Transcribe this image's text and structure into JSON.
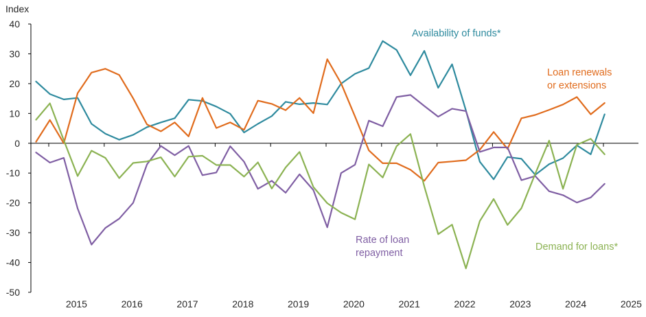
{
  "chart_data": {
    "type": "line",
    "y_axis_title": "Index",
    "ylim": [
      -50,
      40
    ],
    "y_ticks": [
      40,
      30,
      20,
      10,
      0,
      -10,
      -20,
      -30,
      -40,
      -50
    ],
    "x_ticks": [
      "2015",
      "2016",
      "2017",
      "2018",
      "2019",
      "2020",
      "2021",
      "2022",
      "2023",
      "2024",
      "2025"
    ],
    "x_start": "2014Q3",
    "grid": false,
    "legend": "none (series labeled directly on chart)",
    "series": [
      {
        "name": "Availability of funds*",
        "label_lines": [
          "Availability of funds*"
        ],
        "color": "#2e8a9e",
        "values": [
          20.7,
          16.5,
          14.7,
          15.2,
          6.5,
          3.2,
          1.2,
          2.8,
          5.4,
          7.0,
          8.4,
          14.6,
          14.2,
          12.3,
          9.9,
          3.6,
          6.5,
          9.1,
          13.9,
          13.1,
          13.5,
          13.0,
          20.0,
          23.3,
          25.2,
          34.3,
          31.3,
          22.8,
          31.0,
          18.6,
          26.5,
          11.0,
          -6.2,
          -12.1,
          -4.6,
          -5.2,
          -10.6,
          -7.0,
          -5.0,
          -0.7,
          -3.7,
          9.7
        ]
      },
      {
        "name": "Loan renewals or extensions",
        "label_lines": [
          "Loan renewals",
          "or extensions"
        ],
        "color": "#e06b1c",
        "values": [
          0.5,
          7.8,
          0.0,
          16.8,
          23.7,
          25.0,
          22.9,
          15.1,
          6.3,
          4.0,
          7.0,
          2.3,
          15.2,
          5.1,
          7.0,
          4.5,
          14.3,
          13.2,
          11.1,
          15.2,
          10.1,
          28.2,
          20.1,
          9.0,
          -2.4,
          -6.7,
          -6.7,
          -8.9,
          -12.6,
          -6.5,
          -6.1,
          -5.7,
          -2.2,
          3.8,
          -1.9,
          8.4,
          9.5,
          11.2,
          13.0,
          15.5,
          9.7,
          13.5
        ]
      },
      {
        "name": "Rate of loan repayment",
        "label_lines": [
          "Rate of loan",
          "repayment"
        ],
        "color": "#7f5ea3",
        "values": [
          -3.1,
          -6.5,
          -4.9,
          -21.9,
          -34.0,
          -28.4,
          -25.3,
          -20.0,
          -7.1,
          -0.9,
          -4.0,
          -0.9,
          -10.7,
          -9.8,
          -1.0,
          -6.2,
          -15.3,
          -12.6,
          -16.6,
          -10.4,
          -15.7,
          -28.2,
          -10.0,
          -7.2,
          7.6,
          5.7,
          15.5,
          16.2,
          12.5,
          8.9,
          11.6,
          10.8,
          -2.9,
          -1.4,
          -1.4,
          -12.4,
          -11.0,
          -16.1,
          -17.4,
          -19.9,
          -18.2,
          -13.6
        ]
      },
      {
        "name": "Demand for loans*",
        "label_lines": [
          "Demand for loans*"
        ],
        "color": "#8bb252",
        "values": [
          7.9,
          13.4,
          1.0,
          -11.0,
          -2.5,
          -4.9,
          -11.7,
          -6.6,
          -6.1,
          -4.7,
          -11.2,
          -4.5,
          -4.2,
          -7.3,
          -7.3,
          -11.2,
          -6.4,
          -15.2,
          -8.1,
          -2.9,
          -14.7,
          -20.1,
          -23.3,
          -25.5,
          -7.1,
          -11.5,
          -1.0,
          3.1,
          -14.5,
          -30.5,
          -27.3,
          -42.0,
          -26.1,
          -18.7,
          -27.4,
          -21.8,
          -10.2,
          0.9,
          -15.3,
          -0.5,
          1.5,
          -3.7
        ]
      }
    ]
  }
}
